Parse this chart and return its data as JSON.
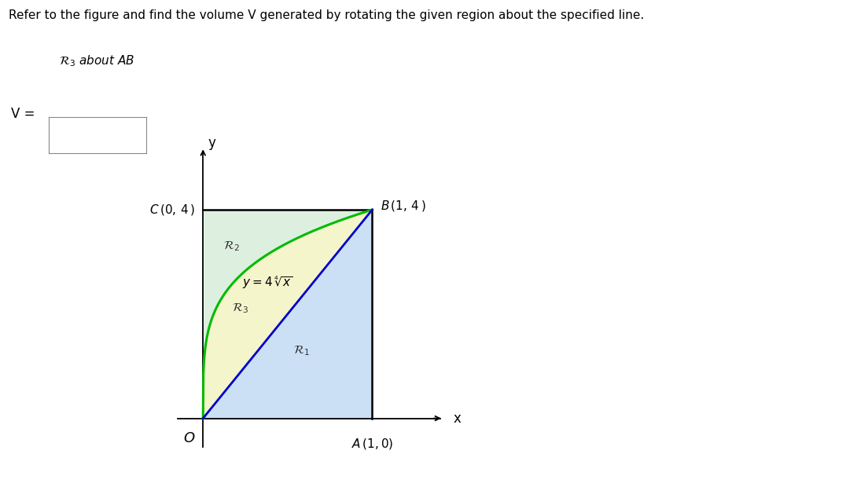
{
  "title_text": "Refer to the figure and find the volume V generated by rotating the given region about the specified line.",
  "background_color": "#ffffff",
  "curve_color": "#00bb00",
  "line_OB_color": "#0000cc",
  "region1_color": "#cce0f5",
  "region2_color": "#ddf0e0",
  "region3_color": "#f5f5cc",
  "rect_border_color": "#000000",
  "xlim": [
    -0.35,
    1.55
  ],
  "ylim": [
    -0.85,
    5.5
  ],
  "label_fontsize": 11,
  "region_label_fontsize": 11,
  "point_fontsize": 11,
  "title_fontsize": 11,
  "subtitle_fontsize": 11,
  "v_fontsize": 12,
  "O_label": "O",
  "A_label": "A (1,0)",
  "B_label": "B (1, 4 )",
  "C_label": "C (0, 4 )",
  "x_label": "x",
  "y_label": "y"
}
